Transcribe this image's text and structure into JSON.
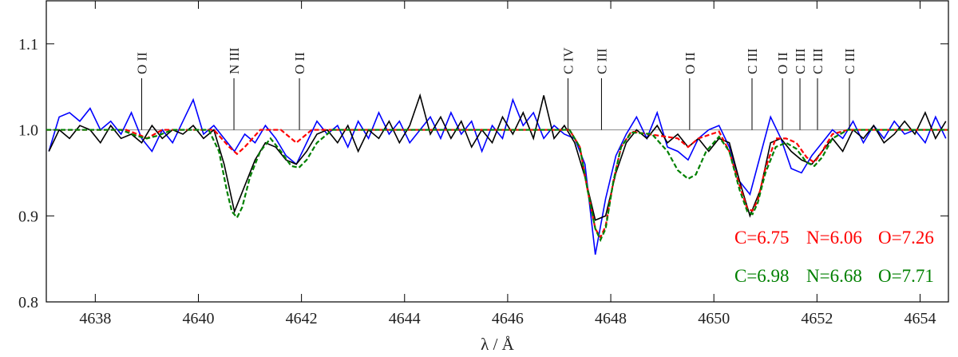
{
  "chart_data": {
    "type": "line",
    "xlabel": "λ / Å",
    "xlim": [
      4637.05,
      4654.55
    ],
    "ylim": [
      0.8,
      1.15
    ],
    "xticks": [
      4638,
      4640,
      4642,
      4644,
      4646,
      4648,
      4650,
      4652,
      4654
    ],
    "yticks": [
      0.8,
      0.9,
      {
        "value": 1,
        "label": "1.0"
      },
      1.1
    ],
    "reference_line": 1,
    "x": [
      4637.1,
      4637.3,
      4637.5,
      4637.7,
      4637.9,
      4638.1,
      4638.3,
      4638.5,
      4638.7,
      4638.9,
      4639.1,
      4639.3,
      4639.5,
      4639.7,
      4639.9,
      4640.1,
      4640.3,
      4640.5,
      4640.7,
      4640.9,
      4641.1,
      4641.3,
      4641.5,
      4641.7,
      4641.9,
      4642.1,
      4642.3,
      4642.5,
      4642.7,
      4642.9,
      4643.1,
      4643.3,
      4643.5,
      4643.7,
      4643.9,
      4644.1,
      4644.3,
      4644.5,
      4644.7,
      4644.9,
      4645.1,
      4645.3,
      4645.5,
      4645.7,
      4645.9,
      4646.1,
      4646.3,
      4646.5,
      4646.7,
      4646.9,
      4647.1,
      4647.3,
      4647.5,
      4647.7,
      4647.9,
      4648.1,
      4648.3,
      4648.5,
      4648.7,
      4648.9,
      4649.1,
      4649.3,
      4649.5,
      4649.7,
      4649.9,
      4650.1,
      4650.3,
      4650.5,
      4650.7,
      4650.9,
      4651.1,
      4651.3,
      4651.5,
      4651.7,
      4651.9,
      4652.1,
      4652.3,
      4652.5,
      4652.7,
      4652.9,
      4653.1,
      4653.3,
      4653.5,
      4653.7,
      4653.9,
      4654.1,
      4654.3,
      4654.5
    ],
    "series": [
      {
        "color": "#0000ff",
        "dashed": false,
        "values": [
          0.975,
          1.015,
          1.02,
          1.01,
          1.025,
          1.0,
          1.01,
          0.995,
          1.02,
          0.99,
          0.975,
          1.0,
          0.985,
          1.01,
          1.035,
          0.995,
          1.005,
          0.99,
          0.975,
          0.995,
          0.985,
          1.005,
          0.99,
          0.97,
          0.96,
          0.985,
          1.01,
          0.995,
          1.005,
          0.98,
          1.01,
          0.99,
          1.02,
          0.995,
          1.01,
          0.985,
          1.0,
          1.015,
          0.99,
          1.02,
          0.995,
          1.01,
          0.975,
          1.005,
          0.99,
          1.035,
          1.005,
          1.02,
          0.99,
          1.005,
          0.995,
          0.99,
          0.96,
          0.855,
          0.92,
          0.97,
          0.995,
          1.015,
          0.99,
          1.02,
          0.98,
          0.975,
          0.965,
          0.99,
          1.0,
          1.005,
          0.98,
          0.94,
          0.925,
          0.97,
          1.015,
          0.99,
          0.955,
          0.95,
          0.97,
          0.985,
          1.0,
          0.99,
          1.01,
          0.985,
          1.005,
          0.99,
          1.01,
          0.995,
          1.0,
          0.985,
          1.015,
          0.99
        ]
      },
      {
        "color": "#000000",
        "dashed": false,
        "values": [
          0.975,
          1.0,
          0.99,
          1.005,
          1.0,
          0.985,
          1.005,
          0.99,
          0.995,
          0.985,
          1.005,
          0.99,
          1.0,
          0.995,
          1.005,
          0.99,
          1.0,
          0.96,
          0.905,
          0.935,
          0.965,
          0.985,
          0.98,
          0.965,
          0.96,
          0.975,
          0.995,
          1.0,
          0.985,
          1.005,
          0.975,
          1.0,
          0.99,
          1.01,
          0.985,
          1.005,
          1.04,
          0.995,
          1.015,
          0.99,
          1.01,
          0.98,
          1.0,
          0.985,
          1.015,
          0.995,
          1.02,
          0.99,
          1.04,
          0.99,
          1.005,
          0.985,
          0.945,
          0.895,
          0.9,
          0.95,
          0.985,
          1.0,
          0.99,
          1.005,
          0.985,
          0.995,
          0.98,
          0.99,
          0.975,
          0.99,
          0.985,
          0.94,
          0.9,
          0.93,
          0.985,
          0.99,
          0.975,
          0.965,
          0.96,
          0.975,
          0.99,
          0.975,
          1.0,
          0.99,
          1.005,
          0.985,
          0.995,
          1.01,
          0.995,
          1.02,
          0.99,
          1.01
        ]
      },
      {
        "color": "#ff0000",
        "dashed": true,
        "abundances": [
          "C=6.75",
          "N=6.06",
          "O=7.26"
        ],
        "x": [
          4637.05,
          4638.6,
          4638.9,
          4639.0,
          4639.3,
          4640.3,
          4640.6,
          4640.75,
          4640.9,
          4641.2,
          4641.6,
          4641.9,
          4642.2,
          4647.2,
          4647.4,
          4647.55,
          4647.7,
          4647.8,
          4647.9,
          4648.05,
          4648.2,
          4648.4,
          4649.3,
          4649.5,
          4649.7,
          4650.1,
          4650.3,
          4650.5,
          4650.65,
          4650.75,
          4650.85,
          4651.0,
          4651.2,
          4651.4,
          4651.6,
          4651.8,
          4651.95,
          4652.1,
          4652.3,
          4652.6,
          4654.55
        ],
        "values": [
          1,
          1,
          0.993,
          0.99,
          1,
          1,
          0.98,
          0.972,
          0.98,
          1,
          1,
          0.985,
          1,
          1,
          0.98,
          0.93,
          0.885,
          0.875,
          0.888,
          0.94,
          0.98,
          0.998,
          0.99,
          0.98,
          0.99,
          0.998,
          0.975,
          0.935,
          0.908,
          0.906,
          0.918,
          0.955,
          0.99,
          0.99,
          0.985,
          0.968,
          0.962,
          0.975,
          0.995,
          1,
          1
        ]
      },
      {
        "color": "#008000",
        "dashed": true,
        "abundances": [
          "C=6.98",
          "N=6.68",
          "O=7.71"
        ],
        "x": [
          4637.05,
          4638.5,
          4638.8,
          4639.0,
          4639.2,
          4639.5,
          4640.2,
          4640.4,
          4640.55,
          4640.65,
          4640.75,
          4640.85,
          4641.0,
          4641.2,
          4641.4,
          4641.6,
          4641.8,
          4641.95,
          4642.1,
          4642.3,
          4642.6,
          4647.2,
          4647.4,
          4647.55,
          4647.7,
          4647.8,
          4647.9,
          4648.05,
          4648.2,
          4648.4,
          4648.8,
          4649.1,
          4649.3,
          4649.5,
          4649.65,
          4649.85,
          4650.1,
          4650.3,
          4650.5,
          4650.65,
          4650.75,
          4650.85,
          4651.0,
          4651.2,
          4651.4,
          4651.6,
          4651.8,
          4651.95,
          4652.1,
          4652.3,
          4652.6,
          4654.55
        ],
        "values": [
          1,
          1,
          0.993,
          0.99,
          0.993,
          1,
          1,
          0.975,
          0.93,
          0.905,
          0.898,
          0.91,
          0.945,
          0.975,
          0.99,
          0.975,
          0.958,
          0.956,
          0.965,
          0.985,
          1,
          1,
          0.98,
          0.93,
          0.885,
          0.872,
          0.885,
          0.94,
          0.98,
          0.997,
          0.995,
          0.975,
          0.953,
          0.943,
          0.948,
          0.975,
          0.992,
          0.975,
          0.93,
          0.905,
          0.902,
          0.915,
          0.95,
          0.98,
          0.985,
          0.978,
          0.962,
          0.958,
          0.968,
          0.99,
          1,
          1
        ]
      }
    ],
    "line_ids": [
      {
        "label": "O II",
        "x": 4638.9
      },
      {
        "label": "N III",
        "x": 4640.69
      },
      {
        "label": "O II",
        "x": 4641.96
      },
      {
        "label": "C IV",
        "x": 4647.17
      },
      {
        "label": "C III",
        "x": 4647.82
      },
      {
        "label": "O II",
        "x": 4649.53
      },
      {
        "label": "C III",
        "x": 4650.74
      },
      {
        "label": "O II",
        "x": 4651.33
      },
      {
        "label": "C III",
        "x": 4651.67
      },
      {
        "label": "C III",
        "x": 4652.01
      },
      {
        "label": "C III",
        "x": 4652.63
      }
    ]
  }
}
